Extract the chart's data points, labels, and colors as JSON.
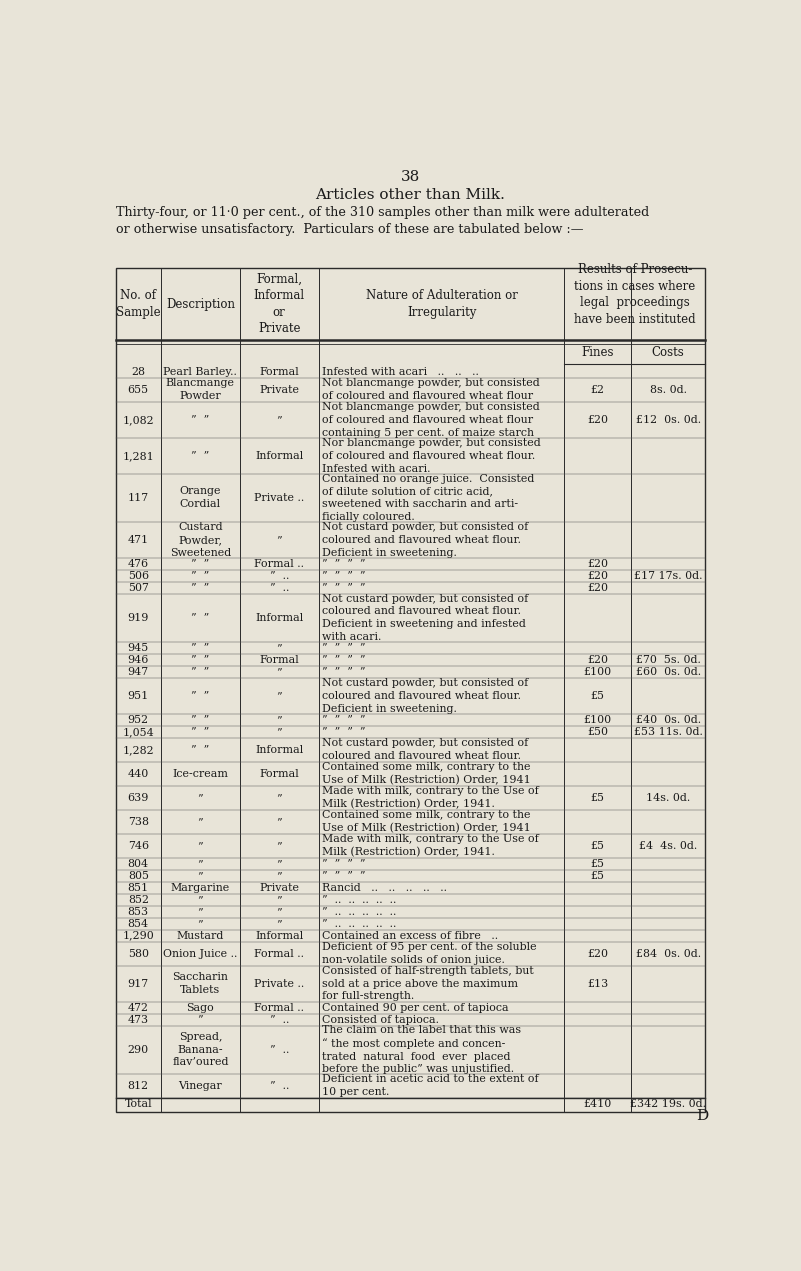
{
  "page_number": "38",
  "title": "Articles other than Milk.",
  "subtitle": "Thirty-four, or 11·0 per cent., of the 310 samples other than milk were adulterated\nor otherwise unsatisfactory.  Particulars of these are tabulated below :—",
  "bg_color": "#e8e4d8",
  "rows": [
    [
      "28",
      "Pearl Barley..",
      "Formal",
      "Infested with acari   ..   ..   ..",
      "",
      ""
    ],
    [
      "655",
      "Blancmange\nPowder",
      "Private",
      "Not blancmange powder, but consisted\nof coloured and flavoured wheat flour",
      "£2",
      "8s. 0d."
    ],
    [
      "1,082",
      "”  ”",
      "”",
      "Not blancmange powder, but consisted\nof coloured and flavoured wheat flour\ncontaining 5 per cent. of maize starch",
      "£20",
      "£12  0s. 0d."
    ],
    [
      "1,281",
      "”  ”",
      "Informal",
      "Nor blancmange powder, but consisted\nof coloured and flavoured wheat flour.\nInfested with acari.",
      "",
      ""
    ],
    [
      "117",
      "Orange\nCordial",
      "Private ..",
      "Contained no orange juice.  Consisted\nof dilute solution of citric acid,\nsweetened with saccharin and arti-\nficially coloured.",
      "",
      ""
    ],
    [
      "471",
      "Custard\nPowder,\nSweetened",
      "”",
      "Not custard powder, but consisted of\ncoloured and flavoured wheat flour.\nDeficient in sweetening.",
      "",
      ""
    ],
    [
      "476",
      "”  ”",
      "Formal ..",
      "”  ”  ”  ”",
      "£20",
      ""
    ],
    [
      "506",
      "”  ”",
      "”  ..",
      "”  ”  ”  ”",
      "£20",
      "£17 17s. 0d."
    ],
    [
      "507",
      "”  ”",
      "”  ..",
      "”  ”  ”  ”",
      "£20",
      ""
    ],
    [
      "919",
      "”  ”",
      "Informal",
      "Not custard powder, but consisted of\ncoloured and flavoured wheat flour.\nDeficient in sweetening and infested\nwith acari.",
      "",
      ""
    ],
    [
      "945",
      "”  ”",
      "”",
      "”  ”  ”  ”",
      "",
      ""
    ],
    [
      "946",
      "”  ”",
      "Formal",
      "”  ”  ”  ”",
      "£20",
      "£70  5s. 0d."
    ],
    [
      "947",
      "”  ”",
      "”",
      "”  ”  ”  ”",
      "£100",
      "£60  0s. 0d."
    ],
    [
      "951",
      "”  ”",
      "”",
      "Not custard powder, but consisted of\ncoloured and flavoured wheat flour.\nDeficient in sweetening.",
      "£5",
      ""
    ],
    [
      "952",
      "”  ”",
      "”",
      "”  ”  ”  ”",
      "£100",
      "£40  0s. 0d."
    ],
    [
      "1,054",
      "”  ”",
      "”",
      "”  ”  ”  ”",
      "£50",
      "£53 11s. 0d."
    ],
    [
      "1,282",
      "”  ”",
      "Informal",
      "Not custard powder, but consisted of\ncoloured and flavoured wheat flour.",
      "",
      ""
    ],
    [
      "440",
      "Ice-cream",
      "Formal",
      "Contained some milk, contrary to the\nUse of Milk (Restriction) Order, 1941",
      "",
      ""
    ],
    [
      "639",
      "”",
      "”",
      "Made with milk, contrary to the Use of\nMilk (Restriction) Order, 1941.",
      "£5",
      "14s. 0d."
    ],
    [
      "738",
      "”",
      "”",
      "Contained some milk, contrary to the\nUse of Milk (Restriction) Order, 1941",
      "",
      ""
    ],
    [
      "746",
      "”",
      "”",
      "Made with milk, contrary to the Use of\nMilk (Restriction) Order, 1941.",
      "£5",
      "£4  4s. 0d."
    ],
    [
      "804",
      "”",
      "”",
      "”  ”  ”  ”",
      "£5",
      ""
    ],
    [
      "805",
      "”",
      "”",
      "”  ”  ”  ”",
      "£5",
      ""
    ],
    [
      "851",
      "Margarine",
      "Private",
      "Rancid   ..   ..   ..   ..   ..",
      "",
      ""
    ],
    [
      "852",
      "”",
      "”",
      "”  ..  ..  ..  ..  ..",
      "",
      ""
    ],
    [
      "853",
      "”",
      "”",
      "”  ..  ..  ..  ..  ..",
      "",
      ""
    ],
    [
      "854",
      "”",
      "”",
      "”  ..  ..  ..  ..  ..",
      "",
      ""
    ],
    [
      "1,290",
      "Mustard",
      "Informal",
      "Contained an excess of fibre   ..",
      "",
      ""
    ],
    [
      "580",
      "Onion Juice ..",
      "Formal ..",
      "Deficient of 95 per cent. of the soluble\nnon-volatile solids of onion juice.",
      "£20",
      "£84  0s. 0d."
    ],
    [
      "917",
      "Saccharin\nTablets",
      "Private ..",
      "Consisted of half-strength tablets, but\nsold at a price above the maximum\nfor full-strength.",
      "£13",
      ""
    ],
    [
      "472",
      "Sago",
      "Formal ..",
      "Contained 90 per cent. of tapioca",
      "",
      ""
    ],
    [
      "473",
      "”",
      "”  ..",
      "Consisted of tapioca.",
      "",
      ""
    ],
    [
      "290",
      "Spread,\nBanana-\nflav’oured",
      "”  ..",
      "The claim on the label that this was\n“ the most complete and concen-\ntrated  natural  food  ever  placed\nbefore the public” was unjustified.",
      "",
      ""
    ],
    [
      "812",
      "Vinegar",
      "”  ..",
      "Deficient in acetic acid to the extent of\n10 per cent.",
      "",
      ""
    ],
    [
      "Total",
      "",
      "",
      "",
      "£410",
      "£342 19s. 0d."
    ]
  ]
}
